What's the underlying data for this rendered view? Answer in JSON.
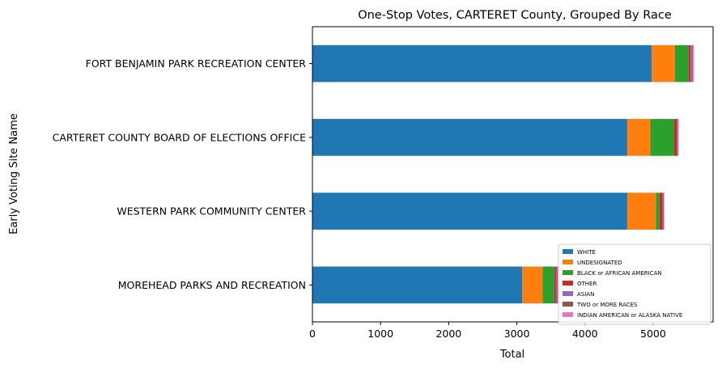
{
  "chart_data": {
    "type": "bar",
    "orientation": "horizontal",
    "stacked": true,
    "title": "One-Stop Votes, CARTERET County, Grouped By Race",
    "xlabel": "Total",
    "ylabel": "Early Voting Site Name",
    "xlim": [
      0,
      5880
    ],
    "xticks": [
      0,
      1000,
      2000,
      3000,
      4000,
      5000
    ],
    "grid": false,
    "legend_position": "lower-right",
    "categories": [
      "MOREHEAD PARKS AND RECREATION",
      "WESTERN PARK COMMUNITY CENTER",
      "CARTERET COUNTY BOARD OF ELECTIONS OFFICE",
      "FORT BENJAMIN PARK RECREATION CENTER"
    ],
    "series": [
      {
        "name": "WHITE",
        "color": "#1f77b4",
        "values": [
          3080,
          4620,
          4620,
          4980
        ]
      },
      {
        "name": "UNDESIGNATED",
        "color": "#ff7f0e",
        "values": [
          300,
          420,
          340,
          340
        ]
      },
      {
        "name": "BLACK or AFRICAN AMERICAN",
        "color": "#2ca02c",
        "values": [
          170,
          55,
          350,
          200
        ]
      },
      {
        "name": "OTHER",
        "color": "#d62728",
        "values": [
          25,
          45,
          40,
          30
        ]
      },
      {
        "name": "ASIAN",
        "color": "#9467bd",
        "values": [
          15,
          10,
          10,
          25
        ]
      },
      {
        "name": "TWO or MORE RACES",
        "color": "#8c564b",
        "values": [
          10,
          8,
          8,
          10
        ]
      },
      {
        "name": "INDIAN AMERICAN or ALASKA NATIVE",
        "color": "#e377c2",
        "values": [
          10,
          7,
          7,
          15
        ]
      }
    ]
  }
}
